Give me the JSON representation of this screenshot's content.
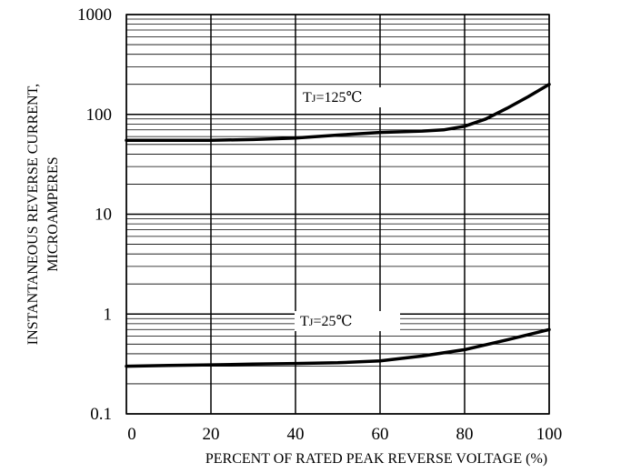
{
  "chart_data": {
    "type": "line",
    "title": "",
    "xlabel": "PERCENT OF RATED PEAK REVERSE VOLTAGE (%)",
    "ylabel": [
      "INSTANTANEOUS REVERSE CURRENT,",
      "MICROAMPERES"
    ],
    "xlim": [
      0,
      100
    ],
    "ylim": [
      0.1,
      1000
    ],
    "yscale": "log",
    "grid": true,
    "x_ticks": [
      0,
      20,
      40,
      60,
      80,
      100
    ],
    "x_tick_labels": [
      "0",
      "20",
      "40",
      "60",
      "80",
      "100"
    ],
    "y_ticks": [
      0.1,
      1,
      10,
      100,
      1000
    ],
    "y_tick_labels": [
      "0.1",
      "1",
      "10",
      "100",
      "1000"
    ],
    "annotations": [
      {
        "prefix": "T",
        "sub": "J",
        "suffix": "=125℃"
      },
      {
        "prefix": "T",
        "sub": "J",
        "suffix": "=25℃"
      }
    ],
    "series": [
      {
        "x": [
          0,
          10,
          20,
          30,
          40,
          50,
          60,
          70,
          75,
          80,
          85,
          90,
          95,
          100
        ],
        "y": [
          55,
          55,
          55,
          56,
          58,
          62,
          66,
          68,
          70,
          76,
          90,
          115,
          150,
          200
        ]
      },
      {
        "x": [
          0,
          10,
          20,
          30,
          40,
          50,
          60,
          70,
          80,
          90,
          100
        ],
        "y": [
          0.3,
          0.305,
          0.31,
          0.315,
          0.32,
          0.325,
          0.34,
          0.38,
          0.44,
          0.55,
          0.7
        ]
      }
    ]
  }
}
